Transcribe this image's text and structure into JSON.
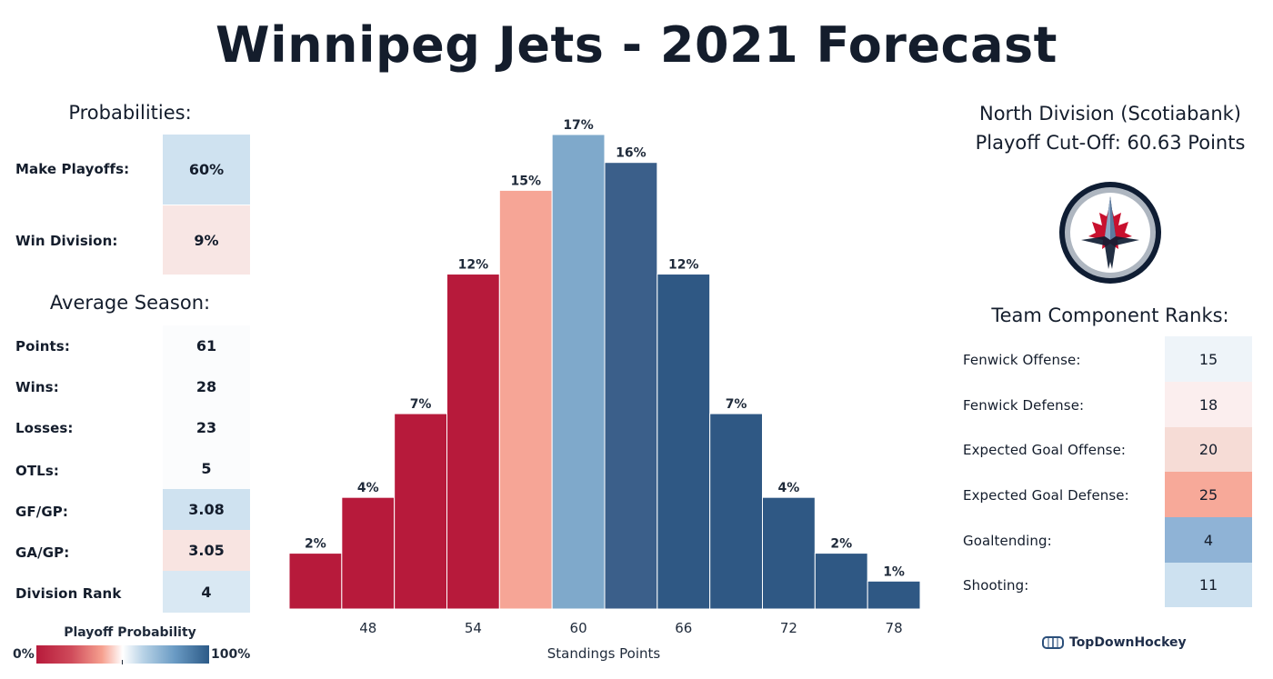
{
  "title": "Winnipeg Jets - 2021 Forecast",
  "probabilities": {
    "heading": "Probabilities:",
    "rows": [
      {
        "label": "Make Playoffs:",
        "value": "60%",
        "color": "#cfe2f0"
      },
      {
        "label": "Win Division:",
        "value": "9%",
        "color": "#f8e6e4"
      }
    ]
  },
  "average_season": {
    "heading": "Average Season:",
    "rows": [
      {
        "label": "Points:",
        "value": "61",
        "color": "#fbfcfd"
      },
      {
        "label": "Wins:",
        "value": "28",
        "color": "#fbfcfd"
      },
      {
        "label": "Losses:",
        "value": "23",
        "color": "#fbfcfd"
      },
      {
        "label": "OTLs:",
        "value": "5",
        "color": "#fbfcfd"
      },
      {
        "label": "GF/GP:",
        "value": "3.08",
        "color": "#cfe2f0"
      },
      {
        "label": "GA/GP:",
        "value": "3.05",
        "color": "#f8e4e1"
      },
      {
        "label": "Division Rank",
        "value": "4",
        "color": "#d9e8f3"
      }
    ]
  },
  "legend": {
    "title": "Playoff Probability",
    "min_label": "0%",
    "max_label": "100%"
  },
  "division": {
    "name": "North Division (Scotiabank)",
    "cutoff": "Playoff Cut-Off: 60.63 Points"
  },
  "logo": {
    "icon": "winnipeg-jets-logo"
  },
  "components": {
    "heading": "Team Component Ranks:",
    "rows": [
      {
        "label": "Fenwick Offense:",
        "value": "15",
        "color": "#eef4f9"
      },
      {
        "label": "Fenwick Defense:",
        "value": "18",
        "color": "#fbeeee"
      },
      {
        "label": "Expected Goal Offense:",
        "value": "20",
        "color": "#f6dcd6"
      },
      {
        "label": "Expected Goal Defense:",
        "value": "25",
        "color": "#f7a999"
      },
      {
        "label": "Goaltending:",
        "value": "4",
        "color": "#8fb3d6"
      },
      {
        "label": "Shooting:",
        "value": "11",
        "color": "#cde1f0"
      }
    ]
  },
  "brand": "TopDownHockey",
  "chart_data": {
    "type": "bar",
    "xlabel": "Standings Points",
    "ylabel": "",
    "x_ticks": [
      "48",
      "54",
      "60",
      "66",
      "72",
      "78"
    ],
    "x_tick_values": [
      48,
      54,
      60,
      66,
      72,
      78
    ],
    "bin_starts": [
      45,
      48,
      51,
      54,
      57,
      60,
      63,
      66,
      69,
      72,
      75,
      78
    ],
    "bin_width": 3,
    "xlim": [
      45,
      81
    ],
    "ylim": [
      0,
      17
    ],
    "values": [
      2,
      4,
      7,
      12,
      15,
      17,
      16,
      12,
      7,
      4,
      2,
      1
    ],
    "labels": [
      "2%",
      "4%",
      "7%",
      "12%",
      "15%",
      "17%",
      "16%",
      "12%",
      "7%",
      "4%",
      "2%",
      "1%"
    ],
    "colors": [
      "#b71a3b",
      "#b71a3b",
      "#b71a3b",
      "#b71a3b",
      "#f6a596",
      "#7fa9cb",
      "#3b5f8a",
      "#2f5884",
      "#2f5884",
      "#2f5884",
      "#2f5884",
      "#2f5884"
    ]
  }
}
